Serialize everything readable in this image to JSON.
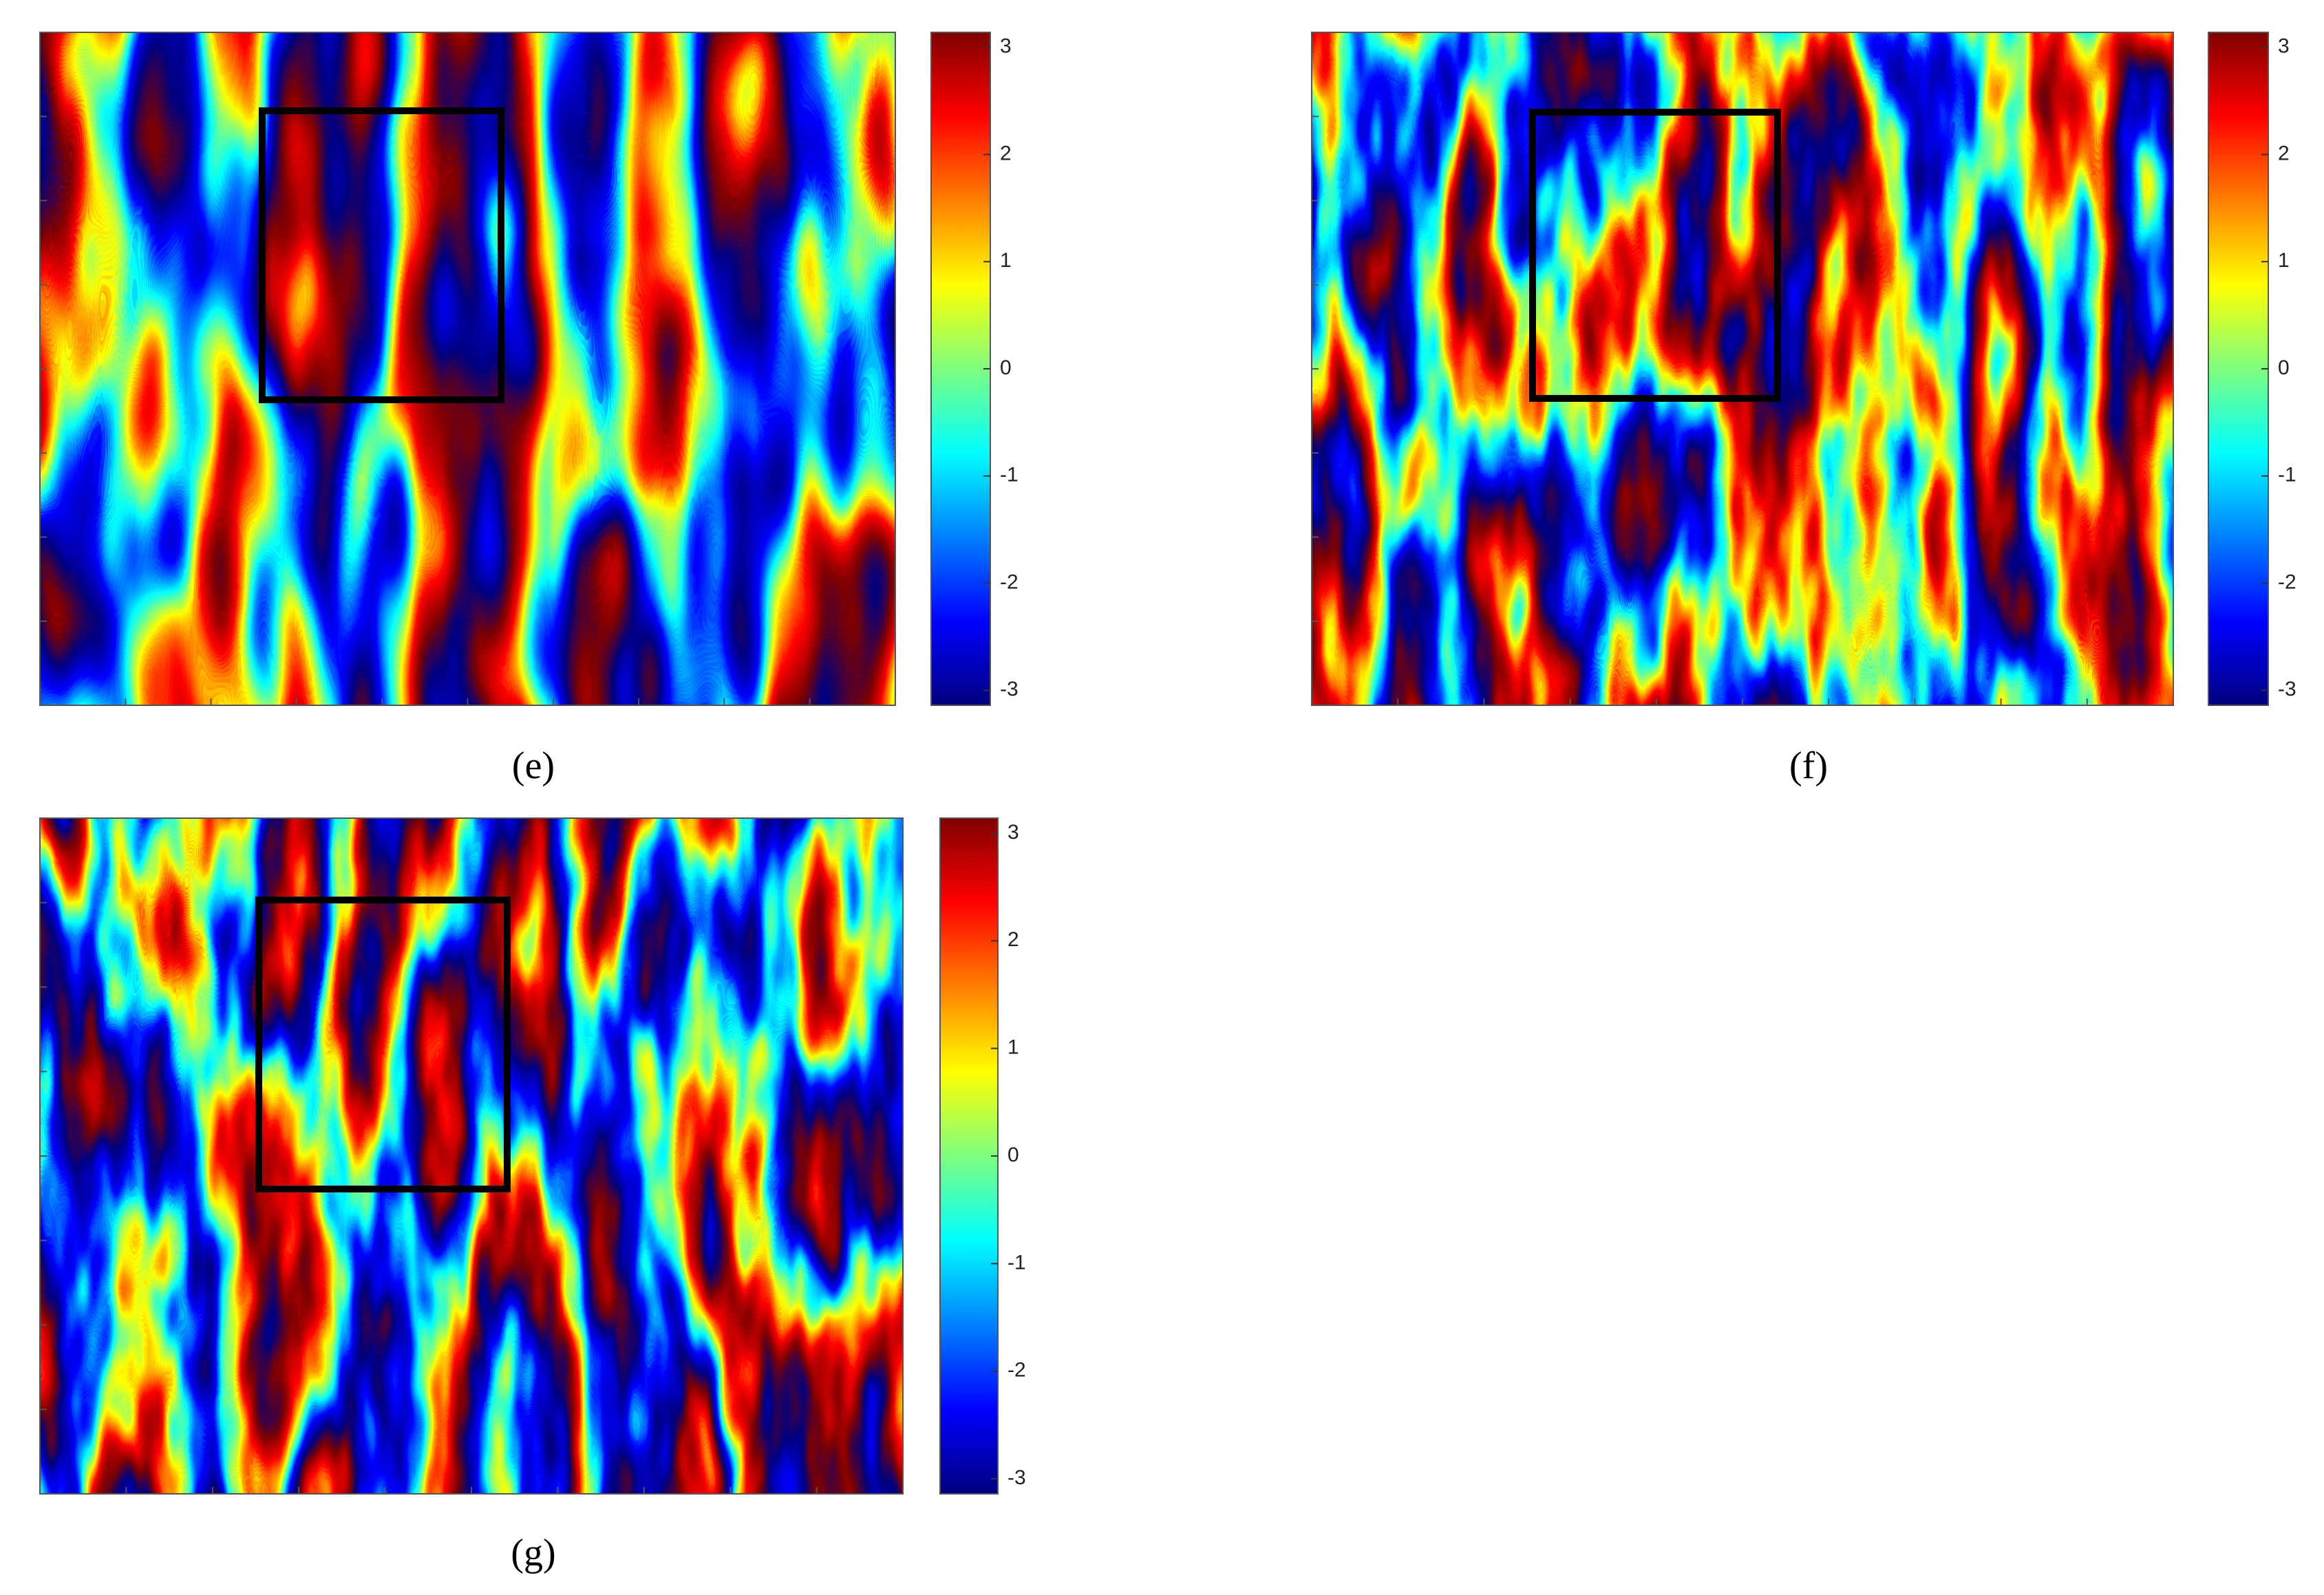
{
  "chart_data": [
    {
      "type": "heatmap",
      "label": "(e)",
      "clim": [
        -3.14,
        3.14
      ],
      "cticks": [
        3,
        2,
        1,
        0,
        -1,
        -2,
        -3
      ]
    },
    {
      "type": "heatmap",
      "label": "(f)",
      "clim": [
        -3.14,
        3.14
      ],
      "cticks": [
        3,
        2,
        1,
        0,
        -1,
        -2,
        -3
      ]
    },
    {
      "type": "heatmap",
      "label": "(g)",
      "clim": [
        -3.14,
        3.14
      ],
      "cticks": [
        3,
        2,
        1,
        0,
        -1,
        -2,
        -3
      ]
    }
  ]
}
